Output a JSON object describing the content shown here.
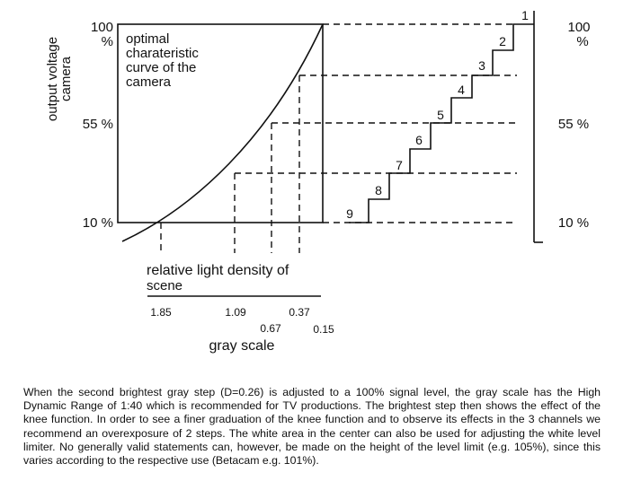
{
  "y_axis": {
    "title_line1": "output voltage",
    "title_line2": "camera",
    "tick_100_num": "100",
    "tick_100_pct": "%",
    "tick_55": "55 %",
    "tick_10": "10 %"
  },
  "right_axis": {
    "tick_100_num": "100",
    "tick_100_pct": "%",
    "tick_55": "55 %",
    "tick_10": "10 %"
  },
  "curve_label": {
    "line1": "optimal",
    "line2": "charateristic",
    "line3": "curve of the",
    "line4": "camera"
  },
  "x_axis": {
    "title_line1": "relative light density of",
    "title_line2": "scene",
    "density_values": [
      "1.85",
      "1.09",
      "0.67",
      "0.37",
      "0.15"
    ],
    "subtitle": "gray scale"
  },
  "steps": [
    "1",
    "2",
    "3",
    "4",
    "5",
    "6",
    "7",
    "8",
    "9"
  ],
  "caption": "When the second brightest gray step (D=0.26) is adjusted to a 100% signal level, the gray scale has the High Dynamic Range of 1:40 which is recommended for TV productions. The brightest step then shows the effect of the knee function. In order to see a finer graduation of the knee function and to observe its effects in the 3 channels we recommend an overexposure of 2 steps. The white area in the center can also be used for adjusting the white level limiter. No generally valid statements can, however, be made on the height of the level limit (e.g. 105%), since this varies according to the respective use (Betacam e.g. 101%)."
}
